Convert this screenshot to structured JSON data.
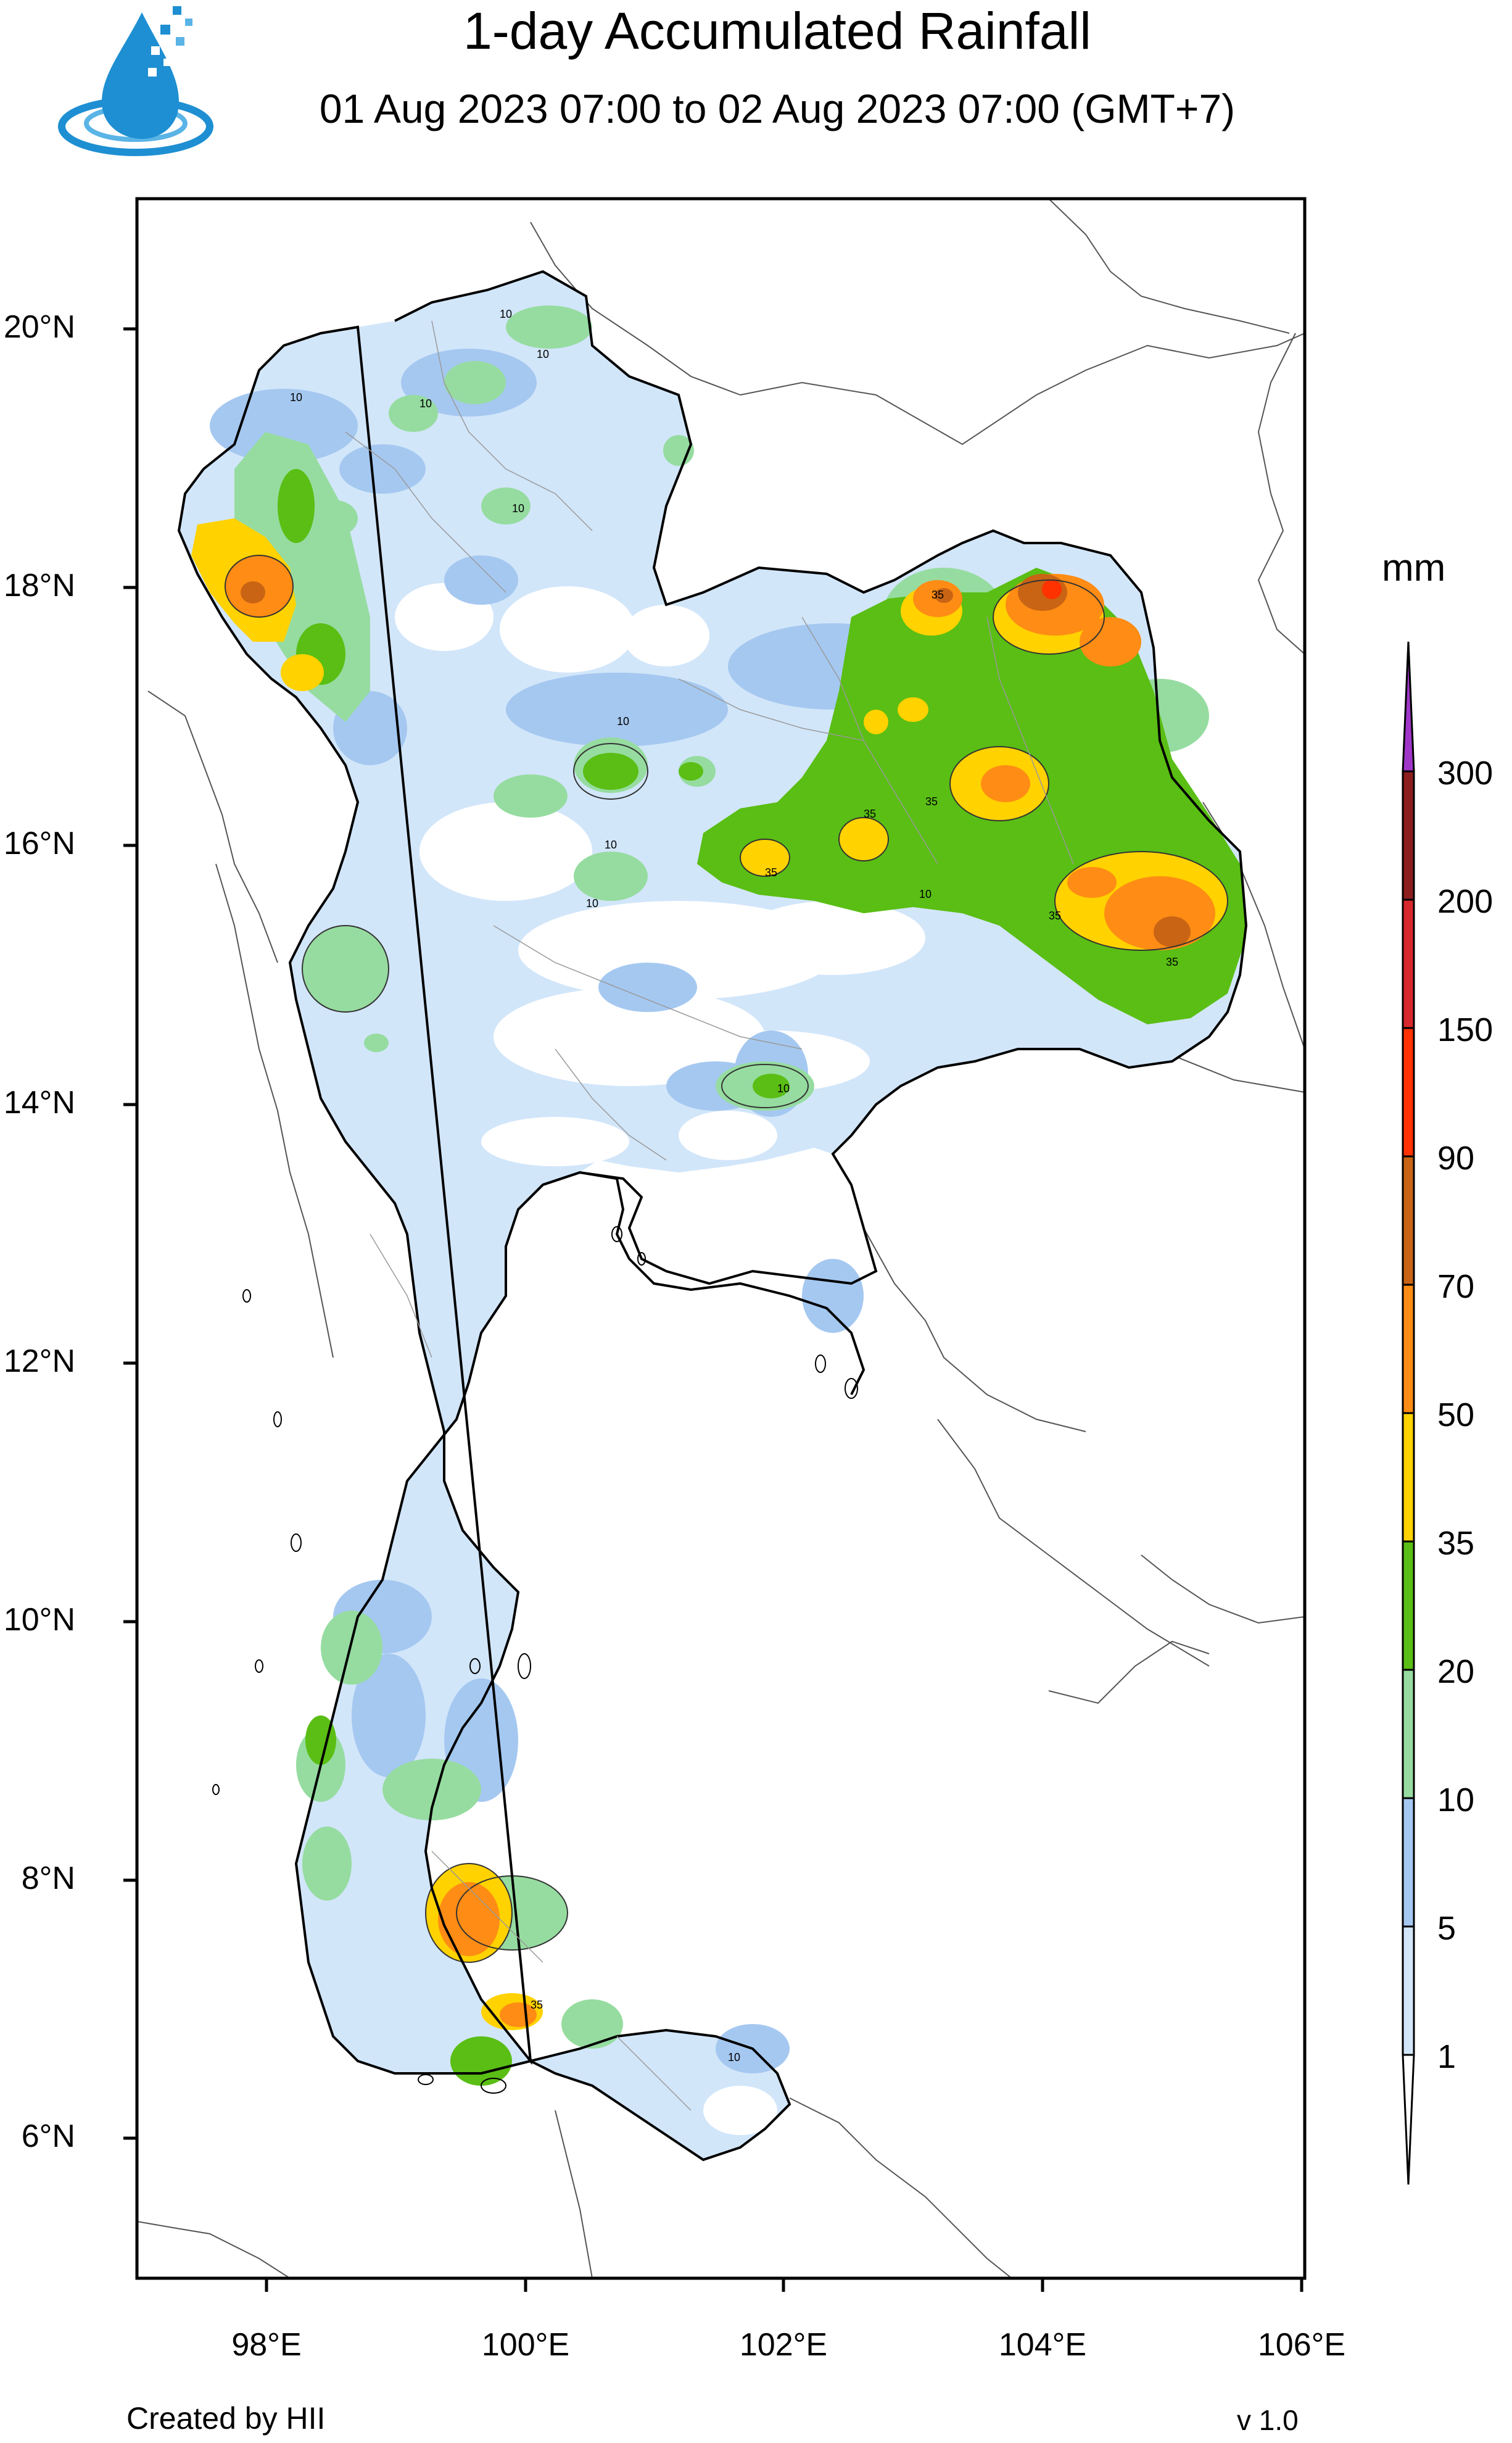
{
  "title": "1-day Accumulated Rainfall",
  "subtitle": "01 Aug 2023 07:00 to 02 Aug 2023 07:00 (GMT+7)",
  "logo_icon": "water-drop-logo-icon",
  "units_label": "mm",
  "lat_ticks": [
    "20°N",
    "18°N",
    "16°N",
    "14°N",
    "12°N",
    "10°N",
    "8°N",
    "6°N"
  ],
  "lon_ticks": [
    "98°E",
    "100°E",
    "102°E",
    "104°E",
    "106°E"
  ],
  "colorbar": {
    "labels": [
      "300",
      "200",
      "150",
      "90",
      "70",
      "50",
      "35",
      "20",
      "10",
      "5",
      "1"
    ],
    "colors": [
      "#a036c8",
      "#8c1e1e",
      "#d7282d",
      "#ff3200",
      "#c86414",
      "#ff8c14",
      "#ffd200",
      "#5abe14",
      "#96dca0",
      "#a5c8f0",
      "#d2e6fa",
      "#ffffff"
    ]
  },
  "contour_labels": [
    "10",
    "10",
    "10",
    "10",
    "10",
    "10",
    "10",
    "10",
    "35",
    "35",
    "35",
    "35",
    "35",
    "35",
    "10",
    "35",
    "10",
    "10"
  ],
  "footer_left": "Created by HII",
  "footer_right": "v 1.0"
}
